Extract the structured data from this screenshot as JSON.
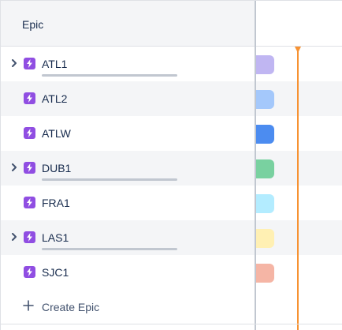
{
  "header": {
    "title": "Epic"
  },
  "epics": [
    {
      "label": "ATL1",
      "expandable": true,
      "has_progress": true,
      "bar_color": "#c0b6f2",
      "alt": false
    },
    {
      "label": "ATL2",
      "expandable": false,
      "has_progress": false,
      "bar_color": "#a4c8fb",
      "alt": true
    },
    {
      "label": "ATLW",
      "expandable": false,
      "has_progress": false,
      "bar_color": "#4c8cf0",
      "alt": false
    },
    {
      "label": "DUB1",
      "expandable": true,
      "has_progress": true,
      "bar_color": "#79d1a0",
      "alt": true
    },
    {
      "label": "FRA1",
      "expandable": false,
      "has_progress": false,
      "bar_color": "#b3ecff",
      "alt": false
    },
    {
      "label": "LAS1",
      "expandable": true,
      "has_progress": true,
      "bar_color": "#fff0b3",
      "alt": true
    },
    {
      "label": "SJC1",
      "expandable": false,
      "has_progress": false,
      "bar_color": "#f5b5a5",
      "alt": false
    }
  ],
  "create": {
    "label": "Create Epic"
  },
  "colors": {
    "epic_icon": "#904ee2",
    "today_line": "#f79232",
    "divider": "#c1c7d0"
  },
  "icons": {
    "expand": "chevron-right-icon",
    "epic": "lightning-bolt-icon",
    "create": "plus-icon"
  }
}
